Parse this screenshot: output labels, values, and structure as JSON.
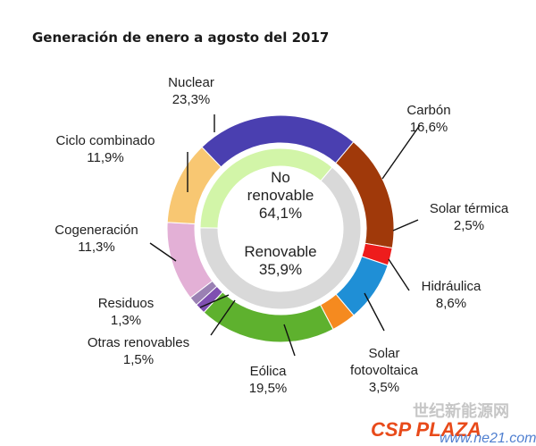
{
  "title": "Generación de enero a agosto del 2017",
  "chart_data": {
    "type": "pie",
    "title": "Generación de enero a agosto del 2017",
    "outer_ring": [
      {
        "name": "Carbón",
        "value": 16.6,
        "label": "16,6%",
        "color": "#a0390a"
      },
      {
        "name": "Solar térmica",
        "value": 2.5,
        "label": "2,5%",
        "color": "#ee1c1c"
      },
      {
        "name": "Hidráulica",
        "value": 8.6,
        "label": "8,6%",
        "color": "#1f8fd6"
      },
      {
        "name": "Solar fotovoltaica",
        "label_lines": [
          "Solar",
          "fotovoltaica"
        ],
        "value": 3.5,
        "label": "3,5%",
        "color": "#f58a1f"
      },
      {
        "name": "Eólica",
        "value": 19.5,
        "label": "19,5%",
        "color": "#5eb12e"
      },
      {
        "name": "Otras renovables",
        "value": 1.5,
        "label": "1,5%",
        "color": "#7f4fb1"
      },
      {
        "name": "Residuos",
        "value": 1.3,
        "label": "1,3%",
        "color": "#9a80b3"
      },
      {
        "name": "Cogeneración",
        "value": 11.3,
        "label": "11,3%",
        "color": "#e3b0d6"
      },
      {
        "name": "Ciclo combinado",
        "value": 11.9,
        "label": "11,9%",
        "color": "#f8c772"
      },
      {
        "name": "Nuclear",
        "value": 23.3,
        "label": "23,3%",
        "color": "#4a3fb0"
      }
    ],
    "inner_ring": [
      {
        "name": "No renovable",
        "label_lines": [
          "No",
          "renovable"
        ],
        "value": 64.1,
        "label": "64,1%",
        "color": "#d9d9d9"
      },
      {
        "name": "Renovable",
        "value": 35.9,
        "label": "35,9%",
        "color": "#d2f5a8"
      }
    ]
  },
  "watermark": {
    "logo": "CSP PLAZA",
    "chinese": "世纪新能源网",
    "url": "www.ne21.com"
  }
}
